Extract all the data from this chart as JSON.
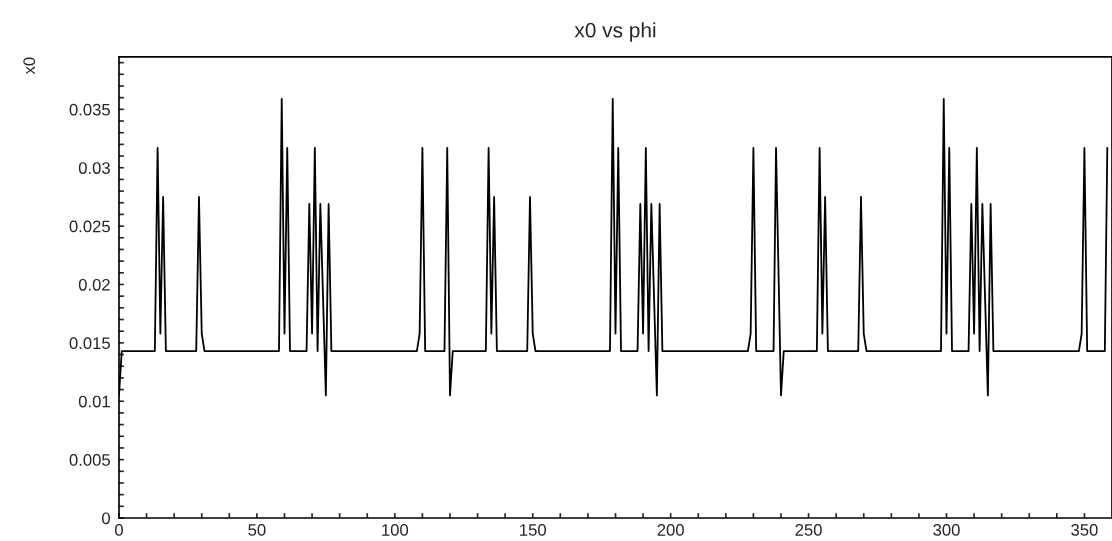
{
  "chart_data": {
    "type": "line",
    "title": "x0 vs phi",
    "ylabel": "x0",
    "x": [
      0,
      1,
      13,
      14,
      15,
      16,
      17,
      28,
      29,
      30,
      31,
      58,
      59,
      60,
      61,
      62,
      68,
      69,
      70,
      71,
      72,
      73,
      75,
      76,
      77,
      108,
      109,
      110,
      111,
      118,
      119,
      120,
      121,
      133,
      134,
      135,
      136,
      137,
      148,
      149,
      150,
      151,
      178,
      179,
      180,
      181,
      182,
      188,
      189,
      190,
      191,
      192,
      193,
      195,
      196,
      197,
      228,
      229,
      230,
      231,
      237.3,
      238.2,
      240,
      241,
      253,
      254,
      255,
      256,
      257,
      268,
      269,
      270,
      271,
      298,
      299,
      300,
      301,
      302,
      308,
      309,
      310,
      311,
      312,
      313,
      315,
      316,
      317,
      348,
      349,
      350,
      351,
      357.4,
      358.3
    ],
    "series": [
      {
        "color": "#000000",
        "values": [
          0.0105,
          0.0143,
          0.0143,
          0.0317,
          0.0158,
          0.0275,
          0.0143,
          0.0143,
          0.0275,
          0.0158,
          0.0143,
          0.0143,
          0.0359,
          0.0158,
          0.0317,
          0.0143,
          0.0143,
          0.0269,
          0.0158,
          0.0317,
          0.0143,
          0.0269,
          0.0105,
          0.0269,
          0.0143,
          0.0143,
          0.0158,
          0.0317,
          0.0143,
          0.0143,
          0.0317,
          0.0105,
          0.0143,
          0.0143,
          0.0317,
          0.0158,
          0.0275,
          0.0143,
          0.0143,
          0.0275,
          0.0158,
          0.0143,
          0.0143,
          0.0359,
          0.0158,
          0.0317,
          0.0143,
          0.0143,
          0.0269,
          0.0158,
          0.0317,
          0.0143,
          0.0269,
          0.0105,
          0.0269,
          0.0143,
          0.0143,
          0.0158,
          0.0317,
          0.0143,
          0.0143,
          0.0317,
          0.0105,
          0.0143,
          0.0143,
          0.0317,
          0.0158,
          0.0275,
          0.0143,
          0.0143,
          0.0275,
          0.0158,
          0.0143,
          0.0143,
          0.0359,
          0.0158,
          0.0317,
          0.0143,
          0.0143,
          0.0269,
          0.0158,
          0.0317,
          0.0143,
          0.0269,
          0.0105,
          0.0269,
          0.0143,
          0.0143,
          0.0158,
          0.0317,
          0.0143,
          0.0143,
          0.0317
        ]
      }
    ],
    "xlim": [
      0,
      360
    ],
    "xticks": [
      0,
      {
        "value": 10,
        "label": null
      },
      {
        "value": 20,
        "label": null
      },
      {
        "value": 30,
        "label": null
      },
      {
        "value": 40,
        "label": null
      },
      50,
      {
        "value": 60,
        "label": null
      },
      {
        "value": 70,
        "label": null
      },
      {
        "value": 80,
        "label": null
      },
      {
        "value": 90,
        "label": null
      },
      100,
      {
        "value": 110,
        "label": null
      },
      {
        "value": 120,
        "label": null
      },
      {
        "value": 130,
        "label": null
      },
      {
        "value": 140,
        "label": null
      },
      150,
      {
        "value": 160,
        "label": null
      },
      {
        "value": 170,
        "label": null
      },
      {
        "value": 180,
        "label": null
      },
      {
        "value": 190,
        "label": null
      },
      200,
      {
        "value": 210,
        "label": null
      },
      {
        "value": 220,
        "label": null
      },
      {
        "value": 230,
        "label": null
      },
      {
        "value": 240,
        "label": null
      },
      250,
      {
        "value": 260,
        "label": null
      },
      {
        "value": 270,
        "label": null
      },
      {
        "value": 280,
        "label": null
      },
      {
        "value": 290,
        "label": null
      },
      300,
      {
        "value": 310,
        "label": null
      },
      {
        "value": 320,
        "label": null
      },
      {
        "value": 330,
        "label": null
      },
      {
        "value": 340,
        "label": null
      },
      350
    ],
    "ylim": [
      0,
      0.0395
    ],
    "yticks": [
      0,
      {
        "value": 0.001,
        "label": null
      },
      {
        "value": 0.002,
        "label": null
      },
      {
        "value": 0.003,
        "label": null
      },
      {
        "value": 0.004,
        "label": null
      },
      0.005,
      {
        "value": 0.006,
        "label": null
      },
      {
        "value": 0.007,
        "label": null
      },
      {
        "value": 0.008,
        "label": null
      },
      {
        "value": 0.009,
        "label": null
      },
      0.01,
      {
        "value": 0.011,
        "label": null
      },
      {
        "value": 0.012,
        "label": null
      },
      {
        "value": 0.013,
        "label": null
      },
      {
        "value": 0.014,
        "label": null
      },
      0.015,
      {
        "value": 0.016,
        "label": null
      },
      {
        "value": 0.017,
        "label": null
      },
      {
        "value": 0.018,
        "label": null
      },
      {
        "value": 0.019,
        "label": null
      },
      0.02,
      {
        "value": 0.021,
        "label": null
      },
      {
        "value": 0.022,
        "label": null
      },
      {
        "value": 0.023,
        "label": null
      },
      {
        "value": 0.024,
        "label": null
      },
      0.025,
      {
        "value": 0.026,
        "label": null
      },
      {
        "value": 0.027,
        "label": null
      },
      {
        "value": 0.028,
        "label": null
      },
      {
        "value": 0.029,
        "label": null
      },
      0.03,
      {
        "value": 0.031,
        "label": null
      },
      {
        "value": 0.032,
        "label": null
      },
      {
        "value": 0.033,
        "label": null
      },
      {
        "value": 0.034,
        "label": null
      },
      0.035,
      {
        "value": 0.036,
        "label": null
      },
      {
        "value": 0.037,
        "label": null
      },
      {
        "value": 0.038,
        "label": null
      },
      {
        "value": 0.039,
        "label": null
      }
    ],
    "grid": false,
    "legend": false,
    "marker": "none",
    "line_style": "solid"
  }
}
